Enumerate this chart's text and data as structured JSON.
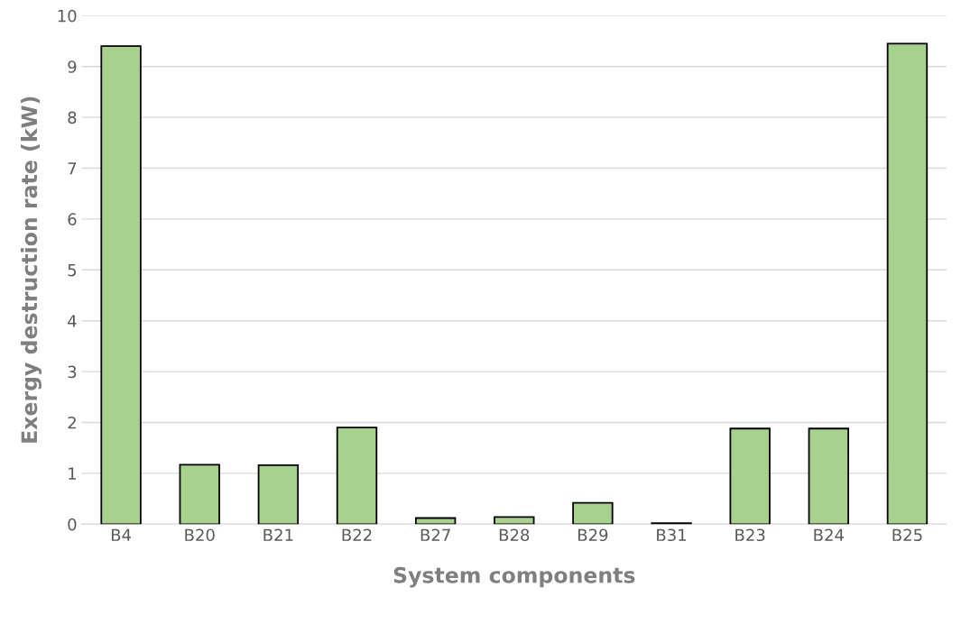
{
  "chart_data": {
    "type": "bar",
    "xlabel": "System components",
    "ylabel": "Exergy destruction rate (kW)",
    "categories": [
      "B4",
      "B20",
      "B21",
      "B22",
      "B27",
      "B28",
      "B29",
      "B31",
      "B23",
      "B24",
      "B25"
    ],
    "values": [
      9.4,
      1.17,
      1.16,
      1.9,
      0.12,
      0.14,
      0.42,
      0.02,
      1.88,
      1.88,
      9.45
    ],
    "color": "#a9d18e",
    "ylim": [
      0,
      10
    ],
    "yticks": [
      0,
      1,
      2,
      3,
      4,
      5,
      6,
      7,
      8,
      9,
      10
    ],
    "grid": "y"
  }
}
